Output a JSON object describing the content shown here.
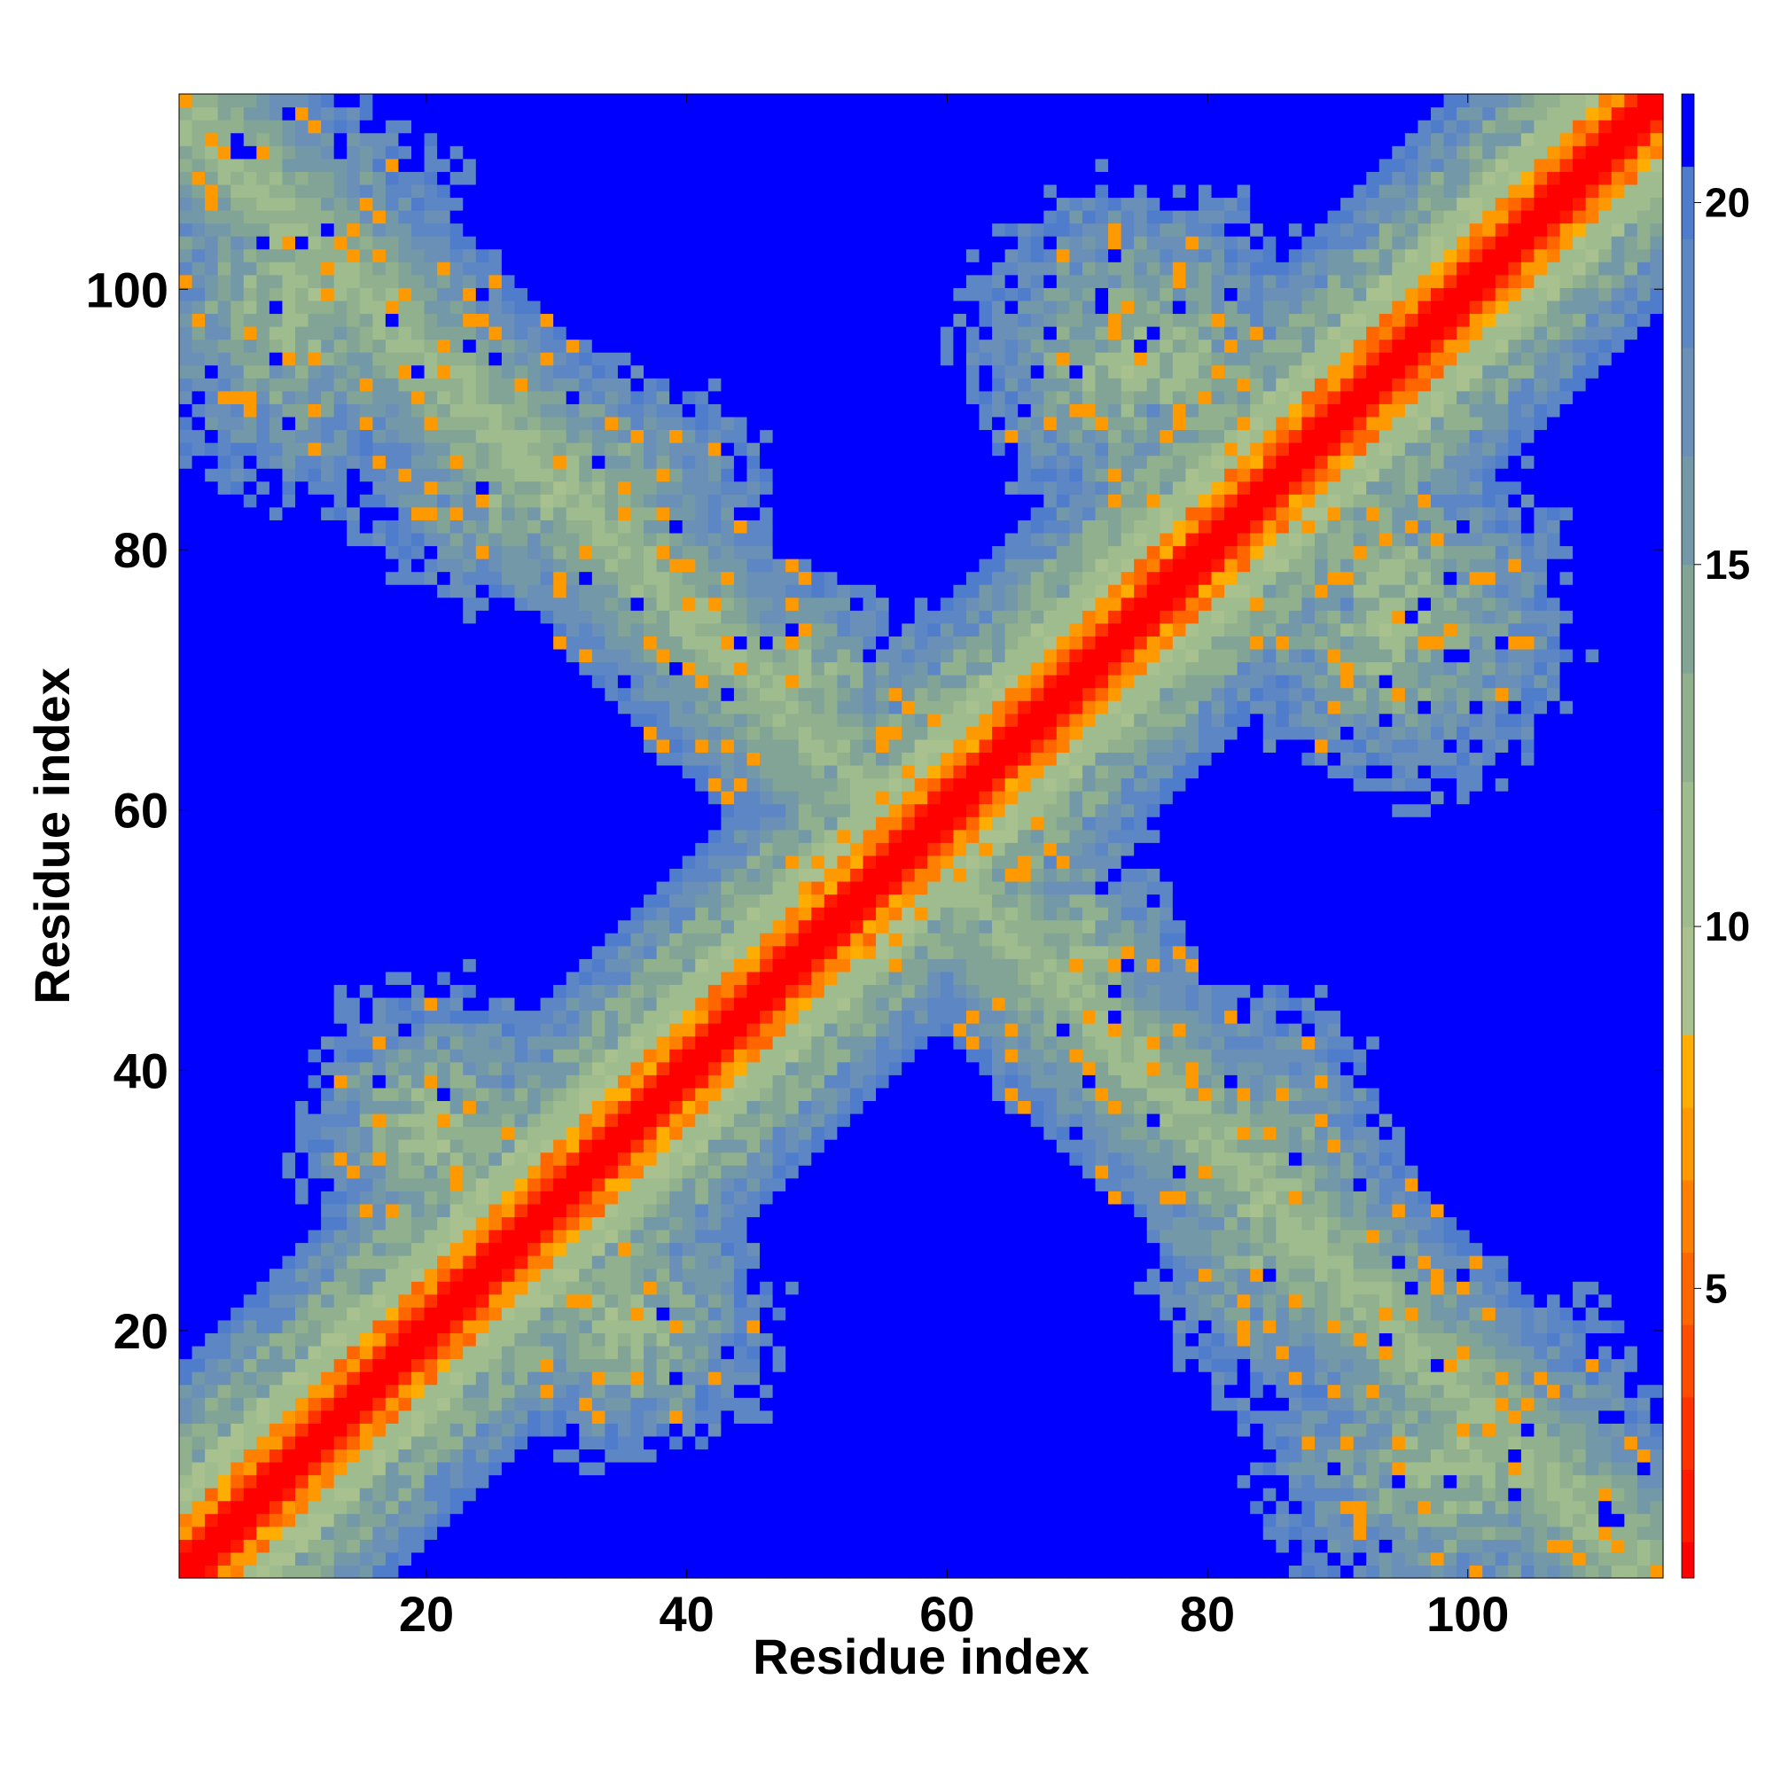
{
  "chart_data": {
    "type": "heatmap",
    "title": "",
    "xlabel": "Residue index",
    "ylabel": "Residue index",
    "n_residues": 115,
    "xlim": [
      1,
      115
    ],
    "ylim": [
      1,
      115
    ],
    "x_ticks": [
      20,
      40,
      60,
      80,
      100
    ],
    "y_ticks": [
      20,
      40,
      60,
      80,
      100
    ],
    "colorbar": {
      "range": [
        1,
        21
      ],
      "ticks": [
        5,
        10,
        15,
        20
      ],
      "levels": [
        {
          "upper": 1.5,
          "color": "#ff0000"
        },
        {
          "upper": 2.5,
          "color": "#ff1a00"
        },
        {
          "upper": 3.5,
          "color": "#ff3300"
        },
        {
          "upper": 4.5,
          "color": "#ff4d00"
        },
        {
          "upper": 5.5,
          "color": "#ff6600"
        },
        {
          "upper": 6.5,
          "color": "#ff8000"
        },
        {
          "upper": 7.5,
          "color": "#ff9900"
        },
        {
          "upper": 8.5,
          "color": "#ffad00"
        },
        {
          "upper": 10.0,
          "color": "#a9c08f"
        },
        {
          "upper": 12.0,
          "color": "#9ebc8e"
        },
        {
          "upper": 13.5,
          "color": "#90b08e"
        },
        {
          "upper": 15.0,
          "color": "#82a496"
        },
        {
          "upper": 16.5,
          "color": "#7399a8"
        },
        {
          "upper": 18.0,
          "color": "#6a90b8"
        },
        {
          "upper": 19.5,
          "color": "#5d86c4"
        },
        {
          "upper": 20.5,
          "color": "#4f7dcc"
        },
        {
          "upper": 999,
          "color": "#0000ff"
        }
      ]
    },
    "matrix_description": "Symmetric residue-residue distance map. Main diagonal shows short distances (red/orange). Anti-diagonal band from (1,115) to (115,1) and off-diagonal blobs show intermediate distances (green/blue-grey); remaining regions are >20 (blue).",
    "features": {
      "diagonal_halfwidth_core": 2,
      "diagonal_halfwidth_orange": 4,
      "diagonal_halfwidth_band": 20,
      "antidiagonal_sum": 115,
      "antidiagonal_halfwidth": 12,
      "blobs": [
        {
          "center": [
            10,
            100
          ],
          "rx": 14,
          "ry": 16
        },
        {
          "center": [
            30,
            85
          ],
          "rx": 16,
          "ry": 10
        },
        {
          "center": [
            48,
            70
          ],
          "rx": 12,
          "ry": 8
        },
        {
          "center": [
            85,
            30
          ],
          "rx": 10,
          "ry": 16
        },
        {
          "center": [
            100,
            10
          ],
          "rx": 16,
          "ry": 14
        },
        {
          "center": [
            70,
            48
          ],
          "rx": 8,
          "ry": 12
        },
        {
          "center": [
            20,
            35
          ],
          "rx": 10,
          "ry": 12
        },
        {
          "center": [
            35,
            20
          ],
          "rx": 12,
          "ry": 10
        },
        {
          "center": [
            75,
            95
          ],
          "rx": 14,
          "ry": 14
        },
        {
          "center": [
            95,
            75
          ],
          "rx": 14,
          "ry": 14
        }
      ]
    }
  }
}
